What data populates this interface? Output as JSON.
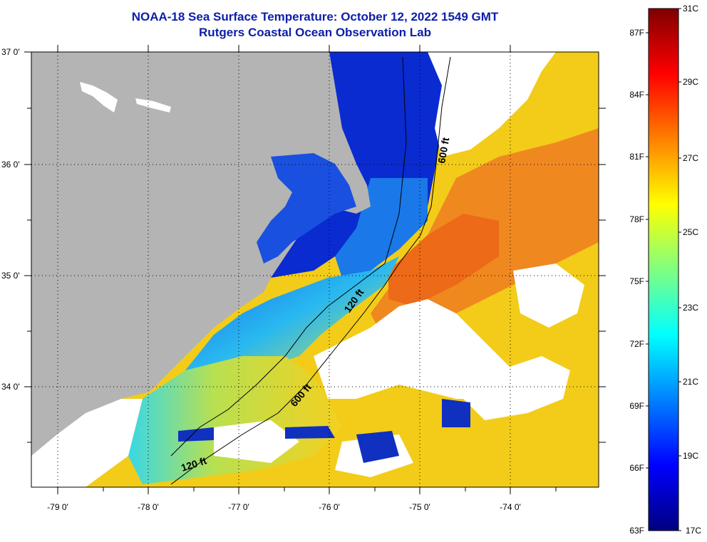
{
  "title_line1": "NOAA-18 Sea Surface Temperature:  October 12, 2022 1549 GMT",
  "title_line2": "Rutgers Coastal Ocean Observation Lab",
  "map": {
    "longitude_labels": [
      "-79 0'",
      "-78 0'",
      "-77 0'",
      "-76 0'",
      "-75 0'",
      "-74 0'"
    ],
    "latitude_labels": [
      "37 0'",
      "36 0'",
      "35 0'",
      "34 0'"
    ],
    "contour_labels": [
      "600 ft",
      "120 ft",
      "600 ft",
      "120 ft"
    ],
    "colors": {
      "land": "#b4b4b4",
      "cloud": "#ffffff",
      "cold_water": "#0a2bd0",
      "warm_water": "#f07818"
    }
  },
  "colorbar": {
    "celsius_labels": [
      "31C",
      "29C",
      "27C",
      "25C",
      "23C",
      "21C",
      "19C",
      "17C"
    ],
    "fahrenheit_labels": [
      "87F",
      "84F",
      "81F",
      "78F",
      "75F",
      "72F",
      "69F",
      "66F",
      "63F"
    ],
    "color_stops": [
      "#00007f",
      "#0000ff",
      "#0080ff",
      "#00ffff",
      "#80ff80",
      "#ffff00",
      "#ff8000",
      "#ff0000",
      "#7f0000"
    ]
  }
}
